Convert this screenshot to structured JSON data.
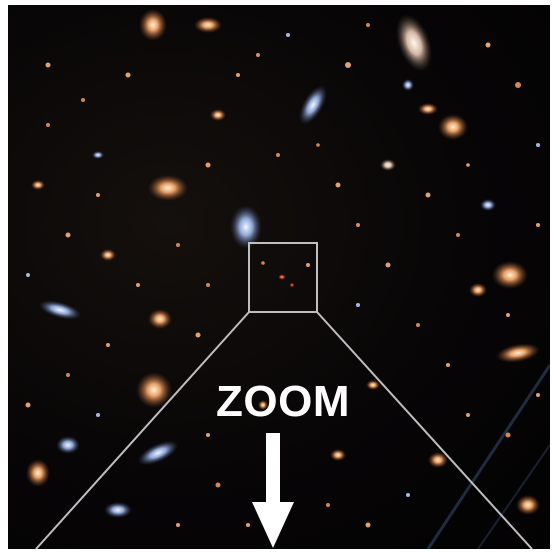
{
  "image": {
    "label": "ZOOM",
    "colors": {
      "background": "#050304",
      "overlay_lines": "#bfbfbf",
      "label": "#ffffff",
      "galaxy_warm": "#d98a52",
      "galaxy_cool": "#7e97c9"
    },
    "icons": {
      "zoom_arrow": "down-arrow-icon"
    }
  }
}
